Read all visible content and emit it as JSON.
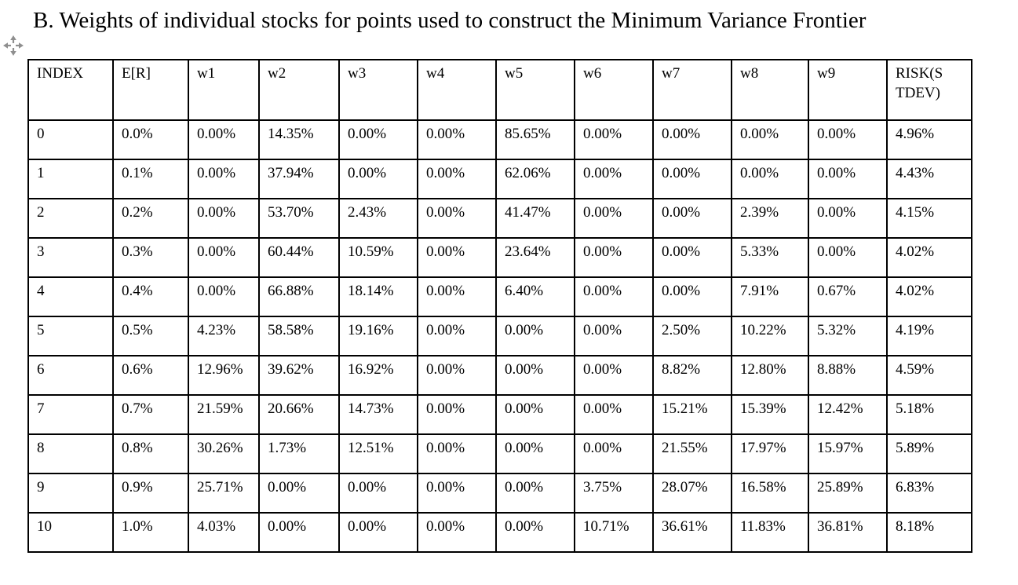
{
  "title": "B. Weights of individual stocks for points used to construct the Minimum Variance Frontier",
  "icons": {
    "move_handle": "four-direction-move-arrows"
  },
  "table": {
    "headers": [
      "INDEX",
      "E[R]",
      "w1",
      "w2",
      "w3",
      "w4",
      "w5",
      "w6",
      "w7",
      "w8",
      "w9",
      "RISK(STDEV)"
    ],
    "rows": [
      [
        "0",
        "0.0%",
        "0.00%",
        "14.35%",
        "0.00%",
        "0.00%",
        "85.65%",
        "0.00%",
        "0.00%",
        "0.00%",
        "0.00%",
        "4.96%"
      ],
      [
        "1",
        "0.1%",
        "0.00%",
        "37.94%",
        "0.00%",
        "0.00%",
        "62.06%",
        "0.00%",
        "0.00%",
        "0.00%",
        "0.00%",
        "4.43%"
      ],
      [
        "2",
        "0.2%",
        "0.00%",
        "53.70%",
        "2.43%",
        "0.00%",
        "41.47%",
        "0.00%",
        "0.00%",
        "2.39%",
        "0.00%",
        "4.15%"
      ],
      [
        "3",
        "0.3%",
        "0.00%",
        "60.44%",
        "10.59%",
        "0.00%",
        "23.64%",
        "0.00%",
        "0.00%",
        "5.33%",
        "0.00%",
        "4.02%"
      ],
      [
        "4",
        "0.4%",
        "0.00%",
        "66.88%",
        "18.14%",
        "0.00%",
        "6.40%",
        "0.00%",
        "0.00%",
        "7.91%",
        "0.67%",
        "4.02%"
      ],
      [
        "5",
        "0.5%",
        "4.23%",
        "58.58%",
        "19.16%",
        "0.00%",
        "0.00%",
        "0.00%",
        "2.50%",
        "10.22%",
        "5.32%",
        "4.19%"
      ],
      [
        "6",
        "0.6%",
        "12.96%",
        "39.62%",
        "16.92%",
        "0.00%",
        "0.00%",
        "0.00%",
        "8.82%",
        "12.80%",
        "8.88%",
        "4.59%"
      ],
      [
        "7",
        "0.7%",
        "21.59%",
        "20.66%",
        "14.73%",
        "0.00%",
        "0.00%",
        "0.00%",
        "15.21%",
        "15.39%",
        "12.42%",
        "5.18%"
      ],
      [
        "8",
        "0.8%",
        "30.26%",
        "1.73%",
        "12.51%",
        "0.00%",
        "0.00%",
        "0.00%",
        "21.55%",
        "17.97%",
        "15.97%",
        "5.89%"
      ],
      [
        "9",
        "0.9%",
        "25.71%",
        "0.00%",
        "0.00%",
        "0.00%",
        "0.00%",
        "3.75%",
        "28.07%",
        "16.58%",
        "25.89%",
        "6.83%"
      ],
      [
        "10",
        "1.0%",
        "4.03%",
        "0.00%",
        "0.00%",
        "0.00%",
        "0.00%",
        "10.71%",
        "36.61%",
        "11.83%",
        "36.81%",
        "8.18%"
      ]
    ]
  }
}
